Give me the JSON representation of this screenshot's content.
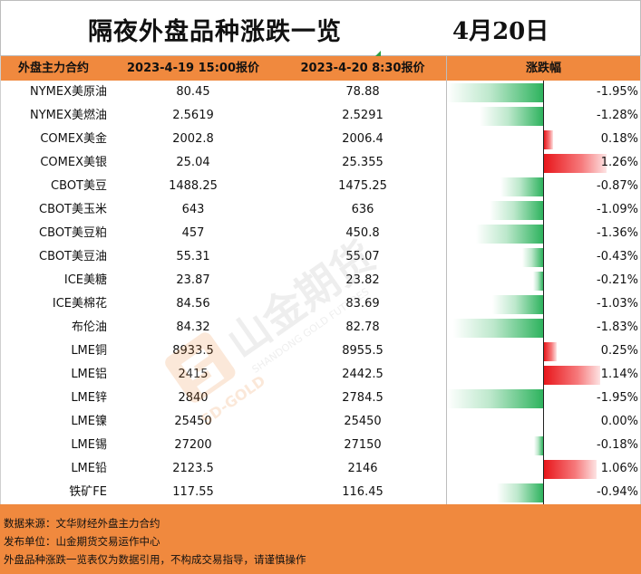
{
  "title": "隔夜外盘品种涨跌一览",
  "date": "4月20日",
  "headers": {
    "name": "外盘主力合约",
    "prev_price": "2023-4-19 15:00报价",
    "curr_price": "2023-4-20 8:30报价",
    "change": "涨跌幅"
  },
  "watermark": {
    "brand_cn": "山金期货",
    "brand_en": "SHANDONG GOLD FUTURES",
    "logo_text": "SD-GOLD"
  },
  "colors": {
    "header_orange": "#f0893e",
    "negative_green": "#2eb35e",
    "positive_red": "#e8161b"
  },
  "chart_data": {
    "type": "table",
    "columns": [
      "外盘主力合约",
      "2023-4-19 15:00报价",
      "2023-4-20 8:30报价",
      "涨跌幅"
    ],
    "bar_range": [
      -1.95,
      1.95
    ],
    "rows": [
      {
        "name": "NYMEX美原油",
        "prev": "80.45",
        "curr": "78.88",
        "pct_text": "-1.95%",
        "pct": -1.95
      },
      {
        "name": "NYMEX美燃油",
        "prev": "2.5619",
        "curr": "2.5291",
        "pct_text": "-1.28%",
        "pct": -1.28
      },
      {
        "name": "COMEX美金",
        "prev": "2002.8",
        "curr": "2006.4",
        "pct_text": "0.18%",
        "pct": 0.18
      },
      {
        "name": "COMEX美银",
        "prev": "25.04",
        "curr": "25.355",
        "pct_text": "1.26%",
        "pct": 1.26
      },
      {
        "name": "CBOT美豆",
        "prev": "1488.25",
        "curr": "1475.25",
        "pct_text": "-0.87%",
        "pct": -0.87
      },
      {
        "name": "CBOT美玉米",
        "prev": "643",
        "curr": "636",
        "pct_text": "-1.09%",
        "pct": -1.09
      },
      {
        "name": "CBOT美豆粕",
        "prev": "457",
        "curr": "450.8",
        "pct_text": "-1.36%",
        "pct": -1.36
      },
      {
        "name": "CBOT美豆油",
        "prev": "55.31",
        "curr": "55.07",
        "pct_text": "-0.43%",
        "pct": -0.43
      },
      {
        "name": "ICE美糖",
        "prev": "23.87",
        "curr": "23.82",
        "pct_text": "-0.21%",
        "pct": -0.21
      },
      {
        "name": "ICE美棉花",
        "prev": "84.56",
        "curr": "83.69",
        "pct_text": "-1.03%",
        "pct": -1.03
      },
      {
        "name": "布伦油",
        "prev": "84.32",
        "curr": "82.78",
        "pct_text": "-1.83%",
        "pct": -1.83
      },
      {
        "name": "LME铜",
        "prev": "8933.5",
        "curr": "8955.5",
        "pct_text": "0.25%",
        "pct": 0.25
      },
      {
        "name": "LME铝",
        "prev": "2415",
        "curr": "2442.5",
        "pct_text": "1.14%",
        "pct": 1.14
      },
      {
        "name": "LME锌",
        "prev": "2840",
        "curr": "2784.5",
        "pct_text": "-1.95%",
        "pct": -1.95
      },
      {
        "name": "LME镍",
        "prev": "25450",
        "curr": "25450",
        "pct_text": "0.00%",
        "pct": 0.0
      },
      {
        "name": "LME锡",
        "prev": "27200",
        "curr": "27150",
        "pct_text": "-0.18%",
        "pct": -0.18
      },
      {
        "name": "LME铅",
        "prev": "2123.5",
        "curr": "2146",
        "pct_text": "1.06%",
        "pct": 1.06
      },
      {
        "name": "铁矿FE",
        "prev": "117.55",
        "curr": "116.45",
        "pct_text": "-0.94%",
        "pct": -0.94
      }
    ]
  },
  "footer": {
    "source": "数据来源：文华财经外盘主力合约",
    "publisher": "发布单位：山金期货交易运作中心",
    "disclaimer": "外盘品种涨跌一览表仅为数据引用，不构成交易指导，请谨慎操作"
  }
}
